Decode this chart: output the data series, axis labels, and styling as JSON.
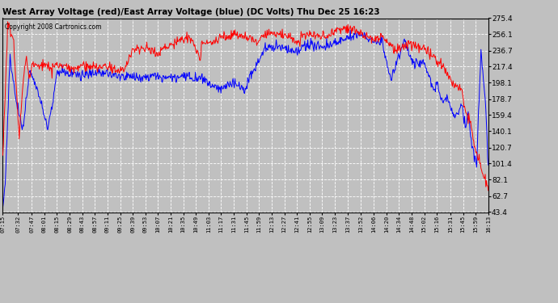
{
  "title": "West Array Voltage (red)/East Array Voltage (blue) (DC Volts) Thu Dec 25 16:23",
  "copyright": "Copyright 2008 Cartronics.com",
  "yticks": [
    275.4,
    256.1,
    236.7,
    217.4,
    198.1,
    178.7,
    159.4,
    140.1,
    120.7,
    101.4,
    82.1,
    62.7,
    43.4
  ],
  "ymin": 43.4,
  "ymax": 275.4,
  "xtick_labels": [
    "07:15",
    "07:32",
    "07:47",
    "08:01",
    "08:15",
    "08:29",
    "08:43",
    "08:57",
    "09:11",
    "09:25",
    "09:39",
    "09:53",
    "10:07",
    "10:21",
    "10:35",
    "10:49",
    "11:03",
    "11:17",
    "11:31",
    "11:45",
    "11:59",
    "12:13",
    "12:27",
    "12:41",
    "12:55",
    "13:09",
    "13:23",
    "13:37",
    "13:52",
    "14:06",
    "14:20",
    "14:34",
    "14:48",
    "15:02",
    "15:16",
    "15:31",
    "15:45",
    "15:59",
    "16:13"
  ],
  "bg_color": "#c0c0c0",
  "plot_bg_color": "#c0c0c0",
  "grid_color": "#ffffff",
  "title_color": "#000000",
  "red_color": "#ff0000",
  "blue_color": "#0000ff",
  "line_width": 0.7,
  "figwidth": 6.9,
  "figheight": 3.75,
  "dpi": 100
}
